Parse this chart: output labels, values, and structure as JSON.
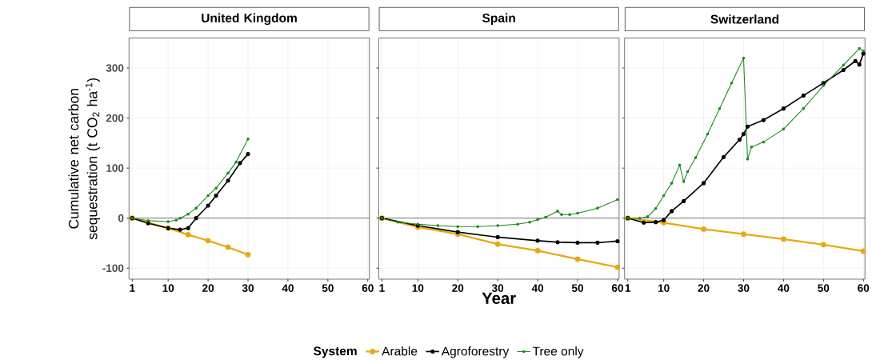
{
  "chart_data": [
    {
      "type": "line",
      "title": "United Kingdom",
      "ylabel": "Cumulative net carbon sequestration (t CO$_{2}$ ha$^{-1}$)",
      "xlim": [
        0.2,
        60.4
      ],
      "ylim": [
        -122,
        360
      ],
      "xticks": [
        1,
        10,
        20,
        30,
        40,
        50,
        60
      ],
      "yticks": [
        -100,
        0,
        100,
        200,
        300
      ],
      "grid": true,
      "marker": "circle",
      "line_style": "solid",
      "ref_lines": [
        {
          "axis": "y",
          "value": 0,
          "color": "#000000"
        }
      ],
      "series": [
        {
          "color": "#e8a90f",
          "x": [
            1,
            5,
            10,
            15,
            20,
            25,
            30
          ],
          "values": [
            0,
            -9,
            -20,
            -33,
            -45,
            -58,
            -73
          ]
        },
        {
          "color": "#000000",
          "x": [
            1,
            5,
            10,
            13,
            15,
            17,
            20,
            22,
            25,
            28,
            30
          ],
          "values": [
            0,
            -10,
            -20,
            -23,
            -20,
            0,
            25,
            45,
            75,
            110,
            128
          ]
        },
        {
          "color": "#1b8a1b",
          "x": [
            1,
            5,
            10,
            12,
            13,
            15,
            17,
            20,
            22,
            25,
            27,
            30
          ],
          "values": [
            0,
            -5,
            -7,
            -4,
            0,
            8,
            20,
            45,
            60,
            90,
            112,
            158
          ]
        }
      ]
    },
    {
      "type": "line",
      "title": "Spain",
      "xlabel": "Year",
      "legend_title": "System",
      "legend": "bottom",
      "tick_labels": "x",
      "xlim": [
        0.2,
        60.4
      ],
      "ylim": [
        -122,
        360
      ],
      "xticks": [
        1,
        10,
        20,
        30,
        40,
        50,
        60
      ],
      "yticks": [
        -100,
        0,
        100,
        200,
        300
      ],
      "grid": true,
      "marker": "circle",
      "line_style": "solid",
      "ref_lines": [
        {
          "axis": "y",
          "value": 0,
          "color": "#000000"
        }
      ],
      "series": [
        {
          "name": "Arable",
          "color": "#e8a90f",
          "x": [
            1,
            10,
            20,
            30,
            40,
            50,
            60
          ],
          "values": [
            0,
            -18,
            -32,
            -52,
            -65,
            -82,
            -98
          ]
        },
        {
          "name": "Agroforestry",
          "color": "#000000",
          "x": [
            1,
            10,
            20,
            30,
            40,
            45,
            50,
            55,
            60
          ],
          "values": [
            0,
            -15,
            -28,
            -38,
            -45,
            -48,
            -49,
            -49,
            -46
          ]
        },
        {
          "name": "Tree only",
          "color": "#1b8a1b",
          "x": [
            1,
            5,
            10,
            15,
            20,
            25,
            30,
            35,
            38,
            40,
            42,
            45,
            46,
            48,
            50,
            55,
            60
          ],
          "values": [
            0,
            -8,
            -12,
            -15,
            -17,
            -17,
            -15,
            -12,
            -8,
            -3,
            2,
            14,
            7,
            7,
            10,
            20,
            37
          ]
        }
      ]
    },
    {
      "type": "line",
      "title": "Switzerland",
      "tick_labels": "x",
      "xlim": [
        0.2,
        60.4
      ],
      "ylim": [
        -122,
        360
      ],
      "xticks": [
        1,
        10,
        20,
        30,
        40,
        50,
        60
      ],
      "yticks": [
        -100,
        0,
        100,
        200,
        300
      ],
      "grid": true,
      "marker": "circle",
      "line_style": "solid",
      "ref_lines": [
        {
          "axis": "y",
          "value": 0,
          "color": "#000000"
        }
      ],
      "series": [
        {
          "color": "#e8a90f",
          "x": [
            1,
            10,
            20,
            30,
            40,
            50,
            60
          ],
          "values": [
            0,
            -9,
            -22,
            -32,
            -42,
            -53,
            -66
          ]
        },
        {
          "color": "#000000",
          "x": [
            1,
            5,
            8,
            10,
            12,
            15,
            20,
            25,
            29,
            30,
            31,
            35,
            40,
            45,
            50,
            55,
            58,
            59,
            60
          ],
          "values": [
            0,
            -9,
            -8,
            -4,
            14,
            34,
            70,
            122,
            157,
            168,
            183,
            196,
            219,
            245,
            270,
            296,
            314,
            307,
            329
          ]
        },
        {
          "color": "#1b8a1b",
          "x": [
            1,
            4,
            6,
            8,
            10,
            12,
            14,
            15,
            16,
            18,
            21,
            24,
            27,
            30,
            31,
            32,
            35,
            40,
            45,
            50,
            55,
            59,
            60
          ],
          "values": [
            0,
            0,
            3,
            19,
            45,
            70,
            106,
            73,
            93,
            121,
            168,
            219,
            270,
            320,
            118,
            142,
            152,
            178,
            219,
            265,
            306,
            339,
            334
          ]
        }
      ]
    }
  ]
}
